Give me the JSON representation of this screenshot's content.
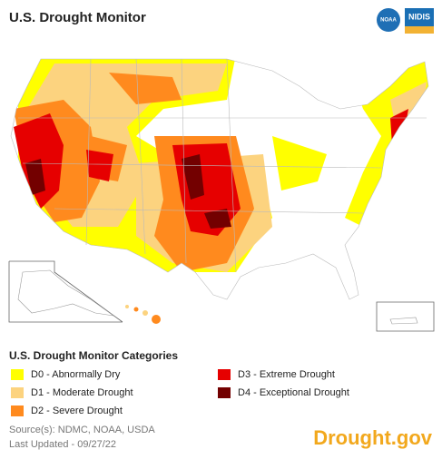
{
  "header": {
    "title": "U.S. Drought Monitor",
    "logos": [
      "NOAA",
      "NIDIS"
    ]
  },
  "legend": {
    "title": "U.S. Drought Monitor Categories",
    "items": [
      {
        "label": "D0 - Abnormally Dry",
        "color": "#ffff00"
      },
      {
        "label": "D1 - Moderate Drought",
        "color": "#fcd37f"
      },
      {
        "label": "D2 - Severe Drought",
        "color": "#ff8a1e"
      },
      {
        "label": "D3 - Extreme Drought",
        "color": "#e60000"
      },
      {
        "label": "D4 - Exceptional Drought",
        "color": "#730000"
      }
    ]
  },
  "footer": {
    "source": "Source(s): NDMC, NOAA, USDA",
    "updated": "Last Updated - 09/27/22",
    "site": "Drought.gov"
  }
}
